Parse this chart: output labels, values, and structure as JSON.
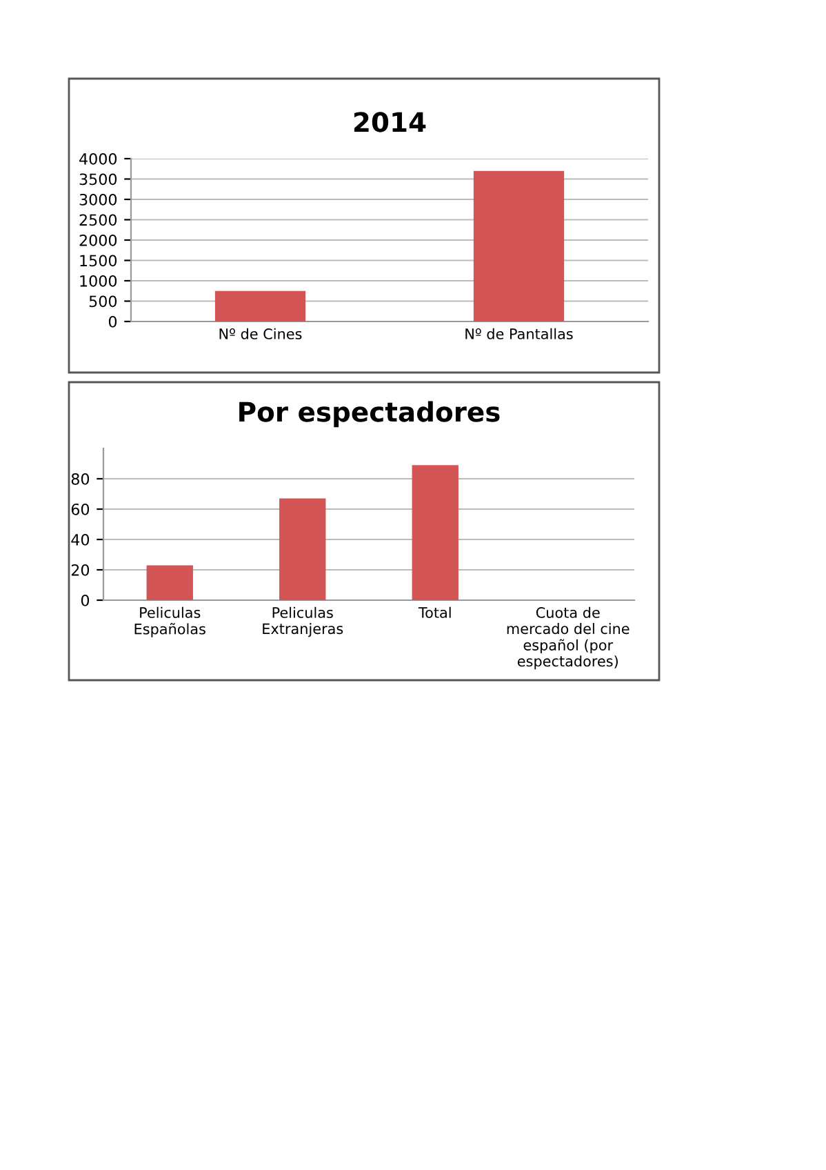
{
  "chart_data": [
    {
      "type": "bar",
      "title": "2014",
      "categories": [
        "Nº de Cines",
        "Nº de Pantallas"
      ],
      "color": "#d45555",
      "values": [
        750,
        3700
      ],
      "ylim": [
        0,
        4000
      ],
      "yticks": [
        0,
        500,
        1000,
        1500,
        2000,
        2500,
        3000,
        3500,
        4000
      ],
      "grid": "y"
    },
    {
      "type": "bar",
      "title": "Por espectadores",
      "categories": [
        "Peliculas\nEspañolas",
        "Peliculas\nExtranjeras",
        "Total",
        "Cuota de\nmercado del cine\nespañol (por\nespectadores)"
      ],
      "color": "#d45555",
      "values": [
        23,
        67,
        89,
        0
      ],
      "ylim": [
        0,
        100
      ],
      "yticks": [
        0,
        20,
        40,
        60,
        80
      ],
      "grid": "y"
    }
  ]
}
